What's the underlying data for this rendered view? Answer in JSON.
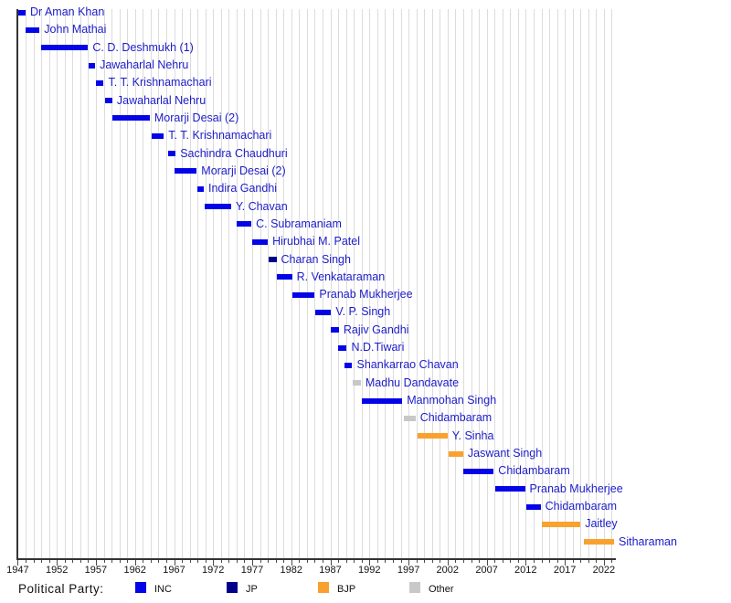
{
  "chart_data": {
    "type": "bar",
    "subtype": "gantt-timeline",
    "title": "",
    "xlabel": "",
    "ylabel": "",
    "x_axis": {
      "min": 1947,
      "max": 2023.4,
      "major_ticks": [
        1947,
        1952,
        1957,
        1962,
        1967,
        1972,
        1977,
        1982,
        1987,
        1992,
        1997,
        2002,
        2007,
        2012,
        2017,
        2022
      ],
      "minor_tick_interval": 1,
      "gridlines": true
    },
    "party_colors": {
      "INC": "#0404e8",
      "JP": "#00008b",
      "BJP": "#f9a12e",
      "Other": "#c8c8c8"
    },
    "bars": [
      {
        "label": "Dr Aman Khan",
        "start": 1947.1,
        "end": 1948.0,
        "party": "INC"
      },
      {
        "label": "John Mathai",
        "start": 1948.0,
        "end": 1949.8,
        "party": "INC"
      },
      {
        "label": "C. D. Deshmukh (1)",
        "start": 1950.0,
        "end": 1956.0,
        "party": "INC"
      },
      {
        "label": "Jawaharlal Nehru",
        "start": 1956.1,
        "end": 1956.9,
        "party": "INC"
      },
      {
        "label": "T. T. Krishnamachari",
        "start": 1957.0,
        "end": 1958.0,
        "party": "INC"
      },
      {
        "label": "Jawaharlal Nehru",
        "start": 1958.2,
        "end": 1959.1,
        "party": "INC"
      },
      {
        "label": "Morarji Desai (2)",
        "start": 1959.1,
        "end": 1963.9,
        "party": "INC"
      },
      {
        "label": "T. T. Krishnamachari",
        "start": 1964.1,
        "end": 1965.7,
        "party": "INC"
      },
      {
        "label": "Sachindra Chaudhuri",
        "start": 1966.2,
        "end": 1967.2,
        "party": "INC"
      },
      {
        "label": "Morarji Desai (2)",
        "start": 1967.0,
        "end": 1969.9,
        "party": "INC"
      },
      {
        "label": "Indira Gandhi",
        "start": 1970.0,
        "end": 1970.8,
        "party": "INC"
      },
      {
        "label": "Y. Chavan",
        "start": 1970.9,
        "end": 1974.3,
        "party": "INC"
      },
      {
        "label": "C. Subramaniam",
        "start": 1975.0,
        "end": 1976.9,
        "party": "INC"
      },
      {
        "label": "Hirubhai M. Patel",
        "start": 1977.0,
        "end": 1979.0,
        "party": "INC"
      },
      {
        "label": "Charan Singh",
        "start": 1979.1,
        "end": 1980.1,
        "party": "JP"
      },
      {
        "label": "R. Venkataraman",
        "start": 1980.1,
        "end": 1982.1,
        "party": "INC"
      },
      {
        "label": "Pranab Mukherjee",
        "start": 1982.1,
        "end": 1985.0,
        "party": "INC"
      },
      {
        "label": "V. P. Singh",
        "start": 1985.1,
        "end": 1987.1,
        "party": "INC"
      },
      {
        "label": "Rajiv Gandhi",
        "start": 1987.1,
        "end": 1988.1,
        "party": "INC"
      },
      {
        "label": "N.D.Tiwari",
        "start": 1988.0,
        "end": 1989.1,
        "party": "INC"
      },
      {
        "label": "Shankarrao Chavan",
        "start": 1988.8,
        "end": 1989.8,
        "party": "INC"
      },
      {
        "label": "Madhu Dandavate",
        "start": 1989.9,
        "end": 1990.9,
        "party": "Other"
      },
      {
        "label": "Manmohan Singh",
        "start": 1991.0,
        "end": 1996.2,
        "party": "INC"
      },
      {
        "label": "Chidambaram",
        "start": 1996.4,
        "end": 1997.9,
        "party": "Other"
      },
      {
        "label": "Y. Sinha",
        "start": 1998.1,
        "end": 2002.0,
        "party": "BJP"
      },
      {
        "label": "Jaswant Singh",
        "start": 2002.1,
        "end": 2004.0,
        "party": "BJP"
      },
      {
        "label": "Chidambaram",
        "start": 2004.0,
        "end": 2007.9,
        "party": "INC"
      },
      {
        "label": "Pranab Mukherjee",
        "start": 2008.1,
        "end": 2011.9,
        "party": "INC"
      },
      {
        "label": "Chidambaram",
        "start": 2012.1,
        "end": 2013.9,
        "party": "INC"
      },
      {
        "label": "Jaitley",
        "start": 2014.1,
        "end": 2019.0,
        "party": "BJP"
      },
      {
        "label": "Sitharaman",
        "start": 2019.4,
        "end": 2023.3,
        "party": "BJP"
      }
    ],
    "legend_position": "bottom"
  },
  "legend": {
    "title": "Political Party:",
    "items": [
      {
        "label": "INC",
        "party": "INC"
      },
      {
        "label": "JP",
        "party": "JP"
      },
      {
        "label": "BJP",
        "party": "BJP"
      },
      {
        "label": "Other",
        "party": "Other"
      }
    ]
  }
}
